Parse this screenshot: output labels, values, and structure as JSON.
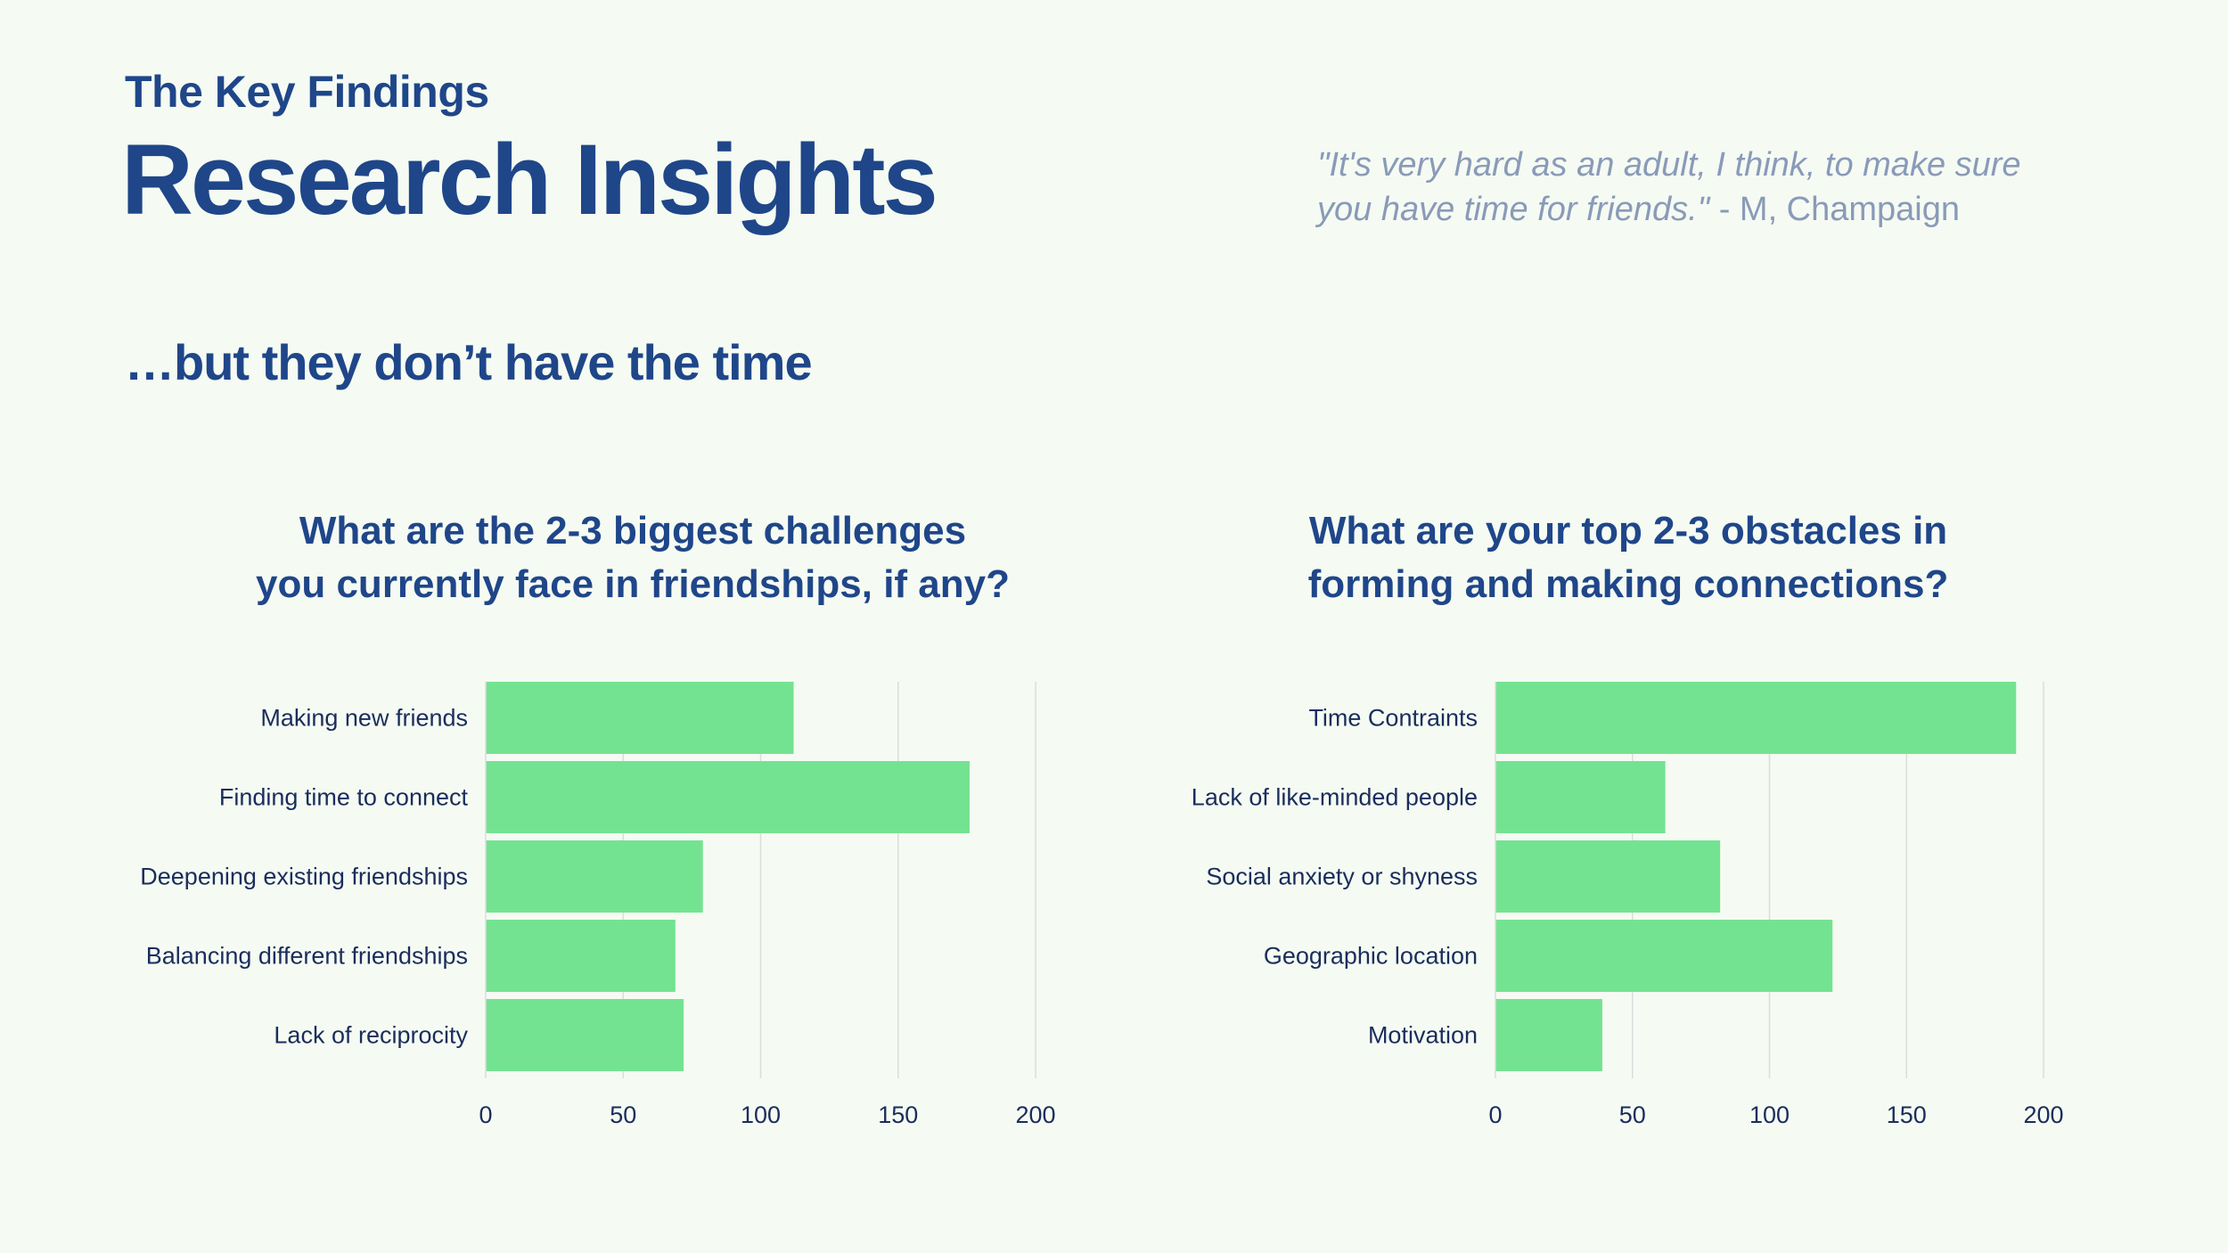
{
  "header": {
    "eyebrow": "The Key Findings",
    "title": "Research Insights",
    "subtitle": "…but they don’t have the time"
  },
  "quote": {
    "text_line1": "\"It's very hard as an adult, I think, to make sure",
    "text_line2": "you have time for friends.\"",
    "attribution": " - M, Champaign"
  },
  "questions": {
    "left_line1": "What are the 2-3 biggest challenges",
    "left_line2": "you currently face in friendships, if any?",
    "right_line1": "What are your top 2-3 obstacles in",
    "right_line2": "forming and making connections?"
  },
  "colors": {
    "bar": "#74e391",
    "grid": "#dcdcdc",
    "title": "#1f4689",
    "label": "#1b2d5c"
  },
  "chart_data": [
    {
      "type": "bar",
      "orientation": "horizontal",
      "title": "What are the 2-3 biggest challenges you currently face in friendships, if any?",
      "categories": [
        "Making new friends",
        "Finding time to connect",
        "Deepening existing friendships",
        "Balancing different friendships",
        "Lack of reciprocity"
      ],
      "values": [
        112,
        176,
        79,
        69,
        72
      ],
      "xlim": [
        0,
        200
      ],
      "xticks": [
        "0",
        "50",
        "100",
        "150",
        "200"
      ],
      "grid": true
    },
    {
      "type": "bar",
      "orientation": "horizontal",
      "title": "What are your top 2-3 obstacles in forming and making connections?",
      "categories": [
        "Time Contraints",
        "Lack of like-minded people",
        "Social anxiety or shyness",
        "Geographic location",
        "Motivation"
      ],
      "values": [
        190,
        62,
        82,
        123,
        39
      ],
      "xlim": [
        0,
        200
      ],
      "xticks": [
        "0",
        "50",
        "100",
        "150",
        "200"
      ],
      "grid": true
    }
  ]
}
